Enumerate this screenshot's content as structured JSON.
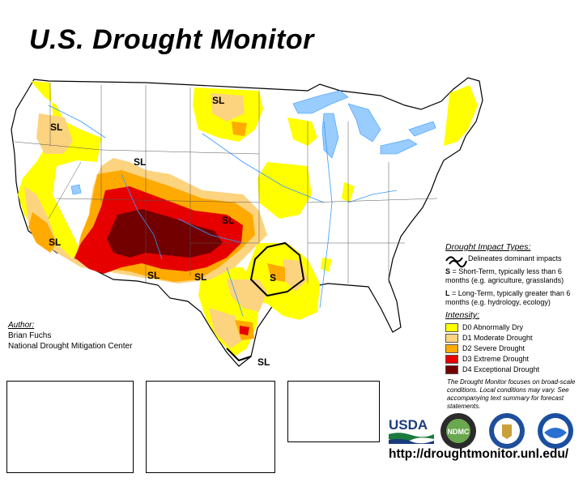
{
  "title": "U.S. Drought Monitor",
  "sl_labels": [
    {
      "text": "SL"
    },
    {
      "text": "SL"
    },
    {
      "text": "SL"
    },
    {
      "text": "SL"
    },
    {
      "text": "SL"
    },
    {
      "text": "SL"
    },
    {
      "text": "SL"
    },
    {
      "text": "S"
    },
    {
      "text": "SL"
    }
  ],
  "author": {
    "heading": "Author:",
    "name": "Brian Fuchs",
    "org": "National Drought Mitigation Center"
  },
  "legend": {
    "impact_heading": "Drought Impact Types:",
    "impact_line": "Delineates dominant impacts",
    "short_term_key": "S",
    "short_term_text": " = Short-Term, typically less than 6 months (e.g. agriculture, grasslands)",
    "long_term_key": "L",
    "long_term_text": " = Long-Term, typically greater than 6 months (e.g. hydrology, ecology)",
    "intensity_heading": "Intensity:",
    "intensity": [
      {
        "label": "D0 Abnormally Dry",
        "color": "#ffff00"
      },
      {
        "label": "D1 Moderate Drought",
        "color": "#fcd37f"
      },
      {
        "label": "D2 Severe Drought",
        "color": "#ffaa00"
      },
      {
        "label": "D3 Extreme Drought",
        "color": "#e60000"
      },
      {
        "label": "D4 Exceptional Drought",
        "color": "#730000"
      }
    ]
  },
  "note": "The Drought Monitor focuses on broad-scale conditions. Local conditions may vary. See accompanying text summary for forecast statements.",
  "logos": {
    "usda": "USDA",
    "ndmc": "NDMC"
  },
  "url": "http://droughtmonitor.unl.edu/",
  "colors": {
    "water": "#99ccff",
    "river": "#3399ff",
    "border": "#000000"
  }
}
